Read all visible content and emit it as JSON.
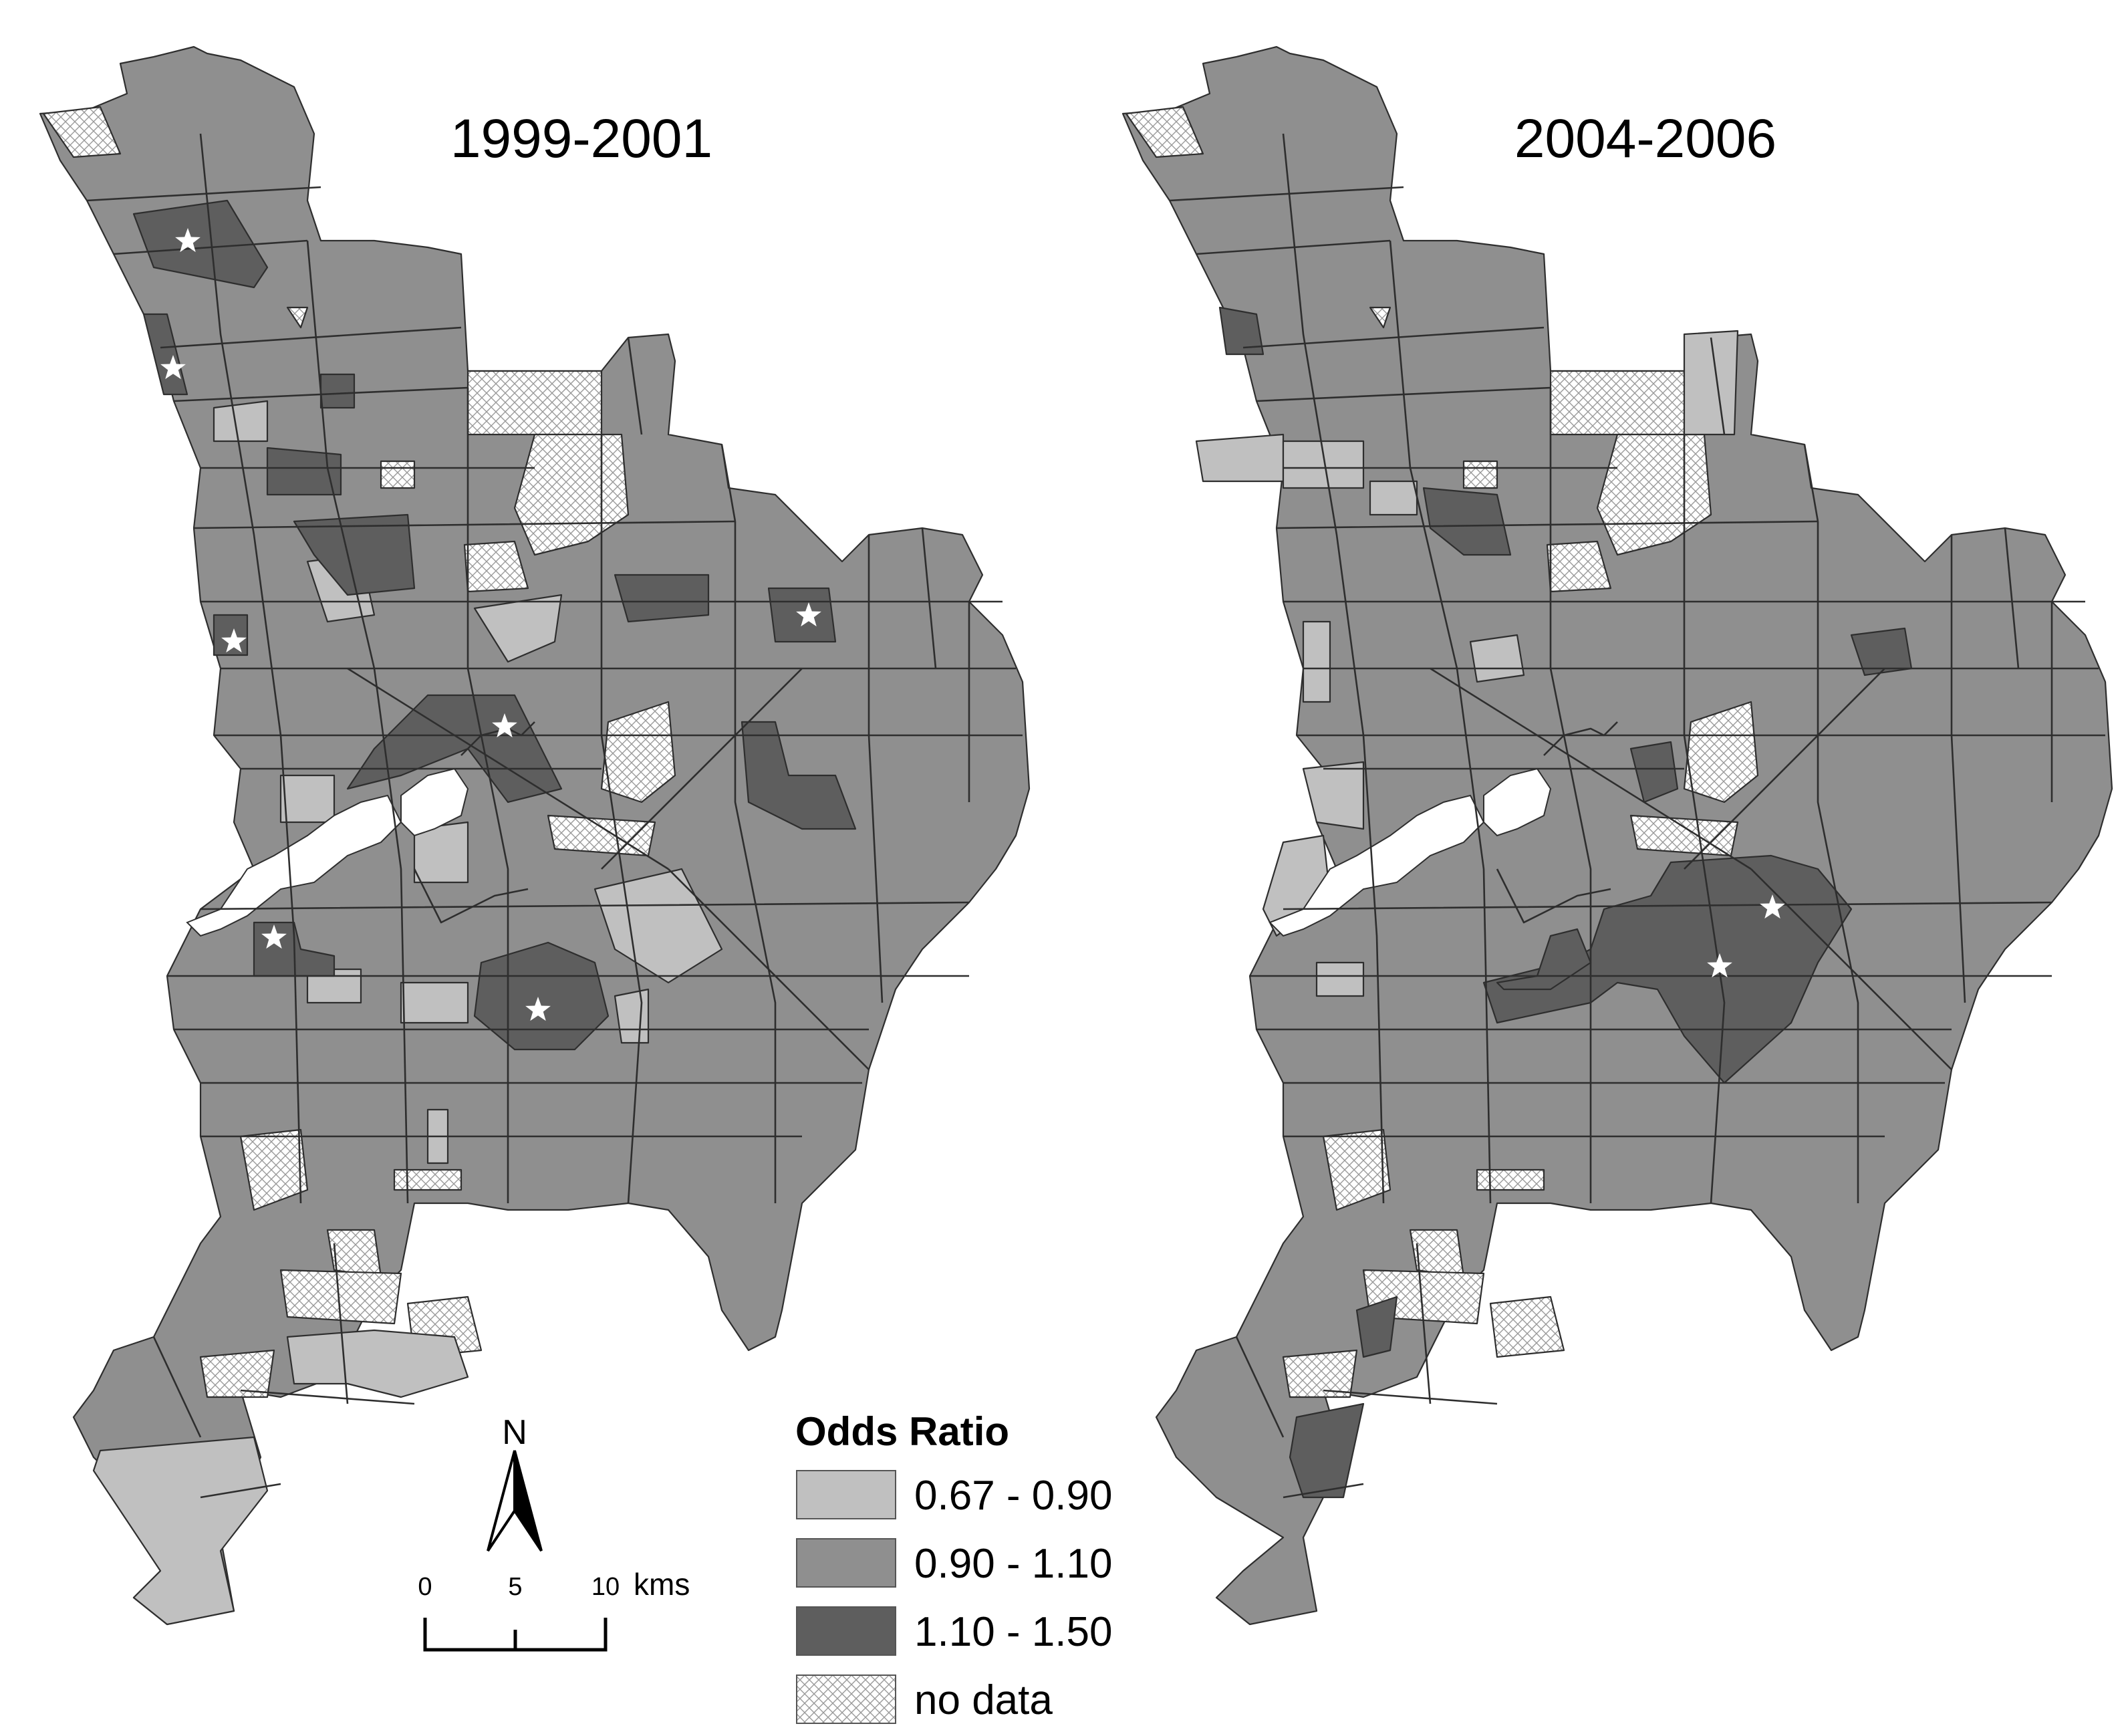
{
  "colors": {
    "low": "#c0c0c0",
    "mid": "#8f8f8f",
    "high": "#5e5e5e",
    "nodata": "#ffffff"
  },
  "map_left": {
    "title": "1999-2001"
  },
  "map_right": {
    "title": "2004-2006"
  },
  "legend": {
    "title": "Odds Ratio",
    "items": [
      {
        "key": "low",
        "label": "0.67 - 0.90"
      },
      {
        "key": "mid",
        "label": "0.90 - 1.10"
      },
      {
        "key": "high",
        "label": "1.10 - 1.50"
      },
      {
        "key": "nodata",
        "label": "no data"
      }
    ]
  },
  "north_arrow": {
    "label": "N"
  },
  "scale_bar": {
    "ticks": [
      "0",
      "5",
      "10"
    ],
    "unit": "kms"
  }
}
